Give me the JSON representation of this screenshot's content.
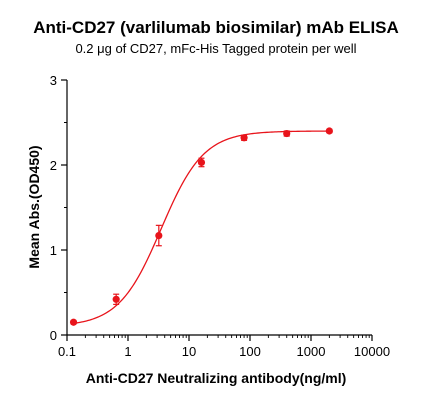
{
  "chart_data": {
    "type": "scatter",
    "title": "Anti-CD27 (varlilumab biosimilar) mAb ELISA",
    "subtitle": "0.2 μg of CD27, mFc-His Tagged protein per well",
    "xlabel": "Anti-CD27 Neutralizing antibody(ng/ml)",
    "ylabel": "Mean Abs.(OD450)",
    "x_scale": "log",
    "xlim": [
      0.1,
      10000
    ],
    "ylim": [
      0,
      3
    ],
    "x_ticks": [
      0.1,
      1,
      10,
      100,
      1000,
      10000
    ],
    "x_tick_labels": [
      "0.1",
      "1",
      "10",
      "100",
      "1000",
      "10000"
    ],
    "y_ticks": [
      0,
      1,
      2,
      3
    ],
    "y_tick_labels": [
      "0",
      "1",
      "2",
      "3"
    ],
    "grid": false,
    "color": "#e8141b",
    "series": [
      {
        "x": [
          0.128,
          0.64,
          3.2,
          16,
          80,
          400,
          2000
        ],
        "y": [
          0.15,
          0.42,
          1.17,
          2.03,
          2.32,
          2.37,
          2.4
        ],
        "err": [
          0.02,
          0.06,
          0.12,
          0.05,
          0.03,
          0.03,
          0.02
        ]
      }
    ],
    "fit_curve": "4PL",
    "fit_params": {
      "bottom": 0.1,
      "top": 2.4,
      "ec50": 3.5,
      "hill": 1.25
    }
  }
}
